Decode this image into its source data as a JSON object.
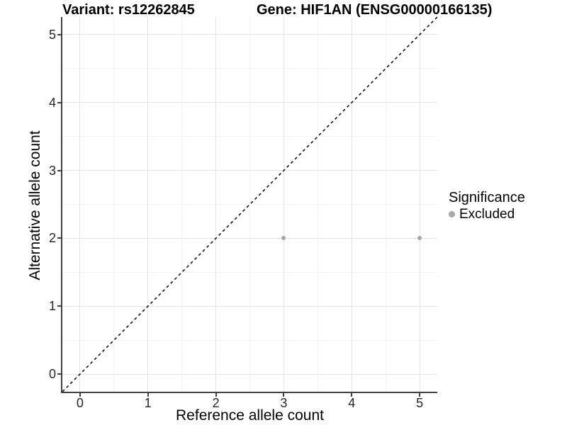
{
  "chart_data": {
    "type": "scatter",
    "title": "Variant: rs12262845",
    "title2": "Gene: HIF1AN (ENSG00000166135)",
    "xlabel": "Reference allele count",
    "ylabel": "Alternative allele count",
    "xlim": [
      -0.26,
      5.26
    ],
    "ylim": [
      -0.26,
      5.26
    ],
    "xticks": [
      0,
      1,
      2,
      3,
      4,
      5
    ],
    "yticks": [
      0,
      1,
      2,
      3,
      4,
      5
    ],
    "minor_ticks": [
      0.5,
      1.5,
      2.5,
      3.5,
      4.5
    ],
    "grid": true,
    "legend_position": "right",
    "series": [
      {
        "name": "Excluded",
        "color": "#a8a8a8",
        "points": [
          {
            "x": 3,
            "y": 2
          },
          {
            "x": 5,
            "y": 2
          }
        ]
      }
    ],
    "reference_line": {
      "type": "identity",
      "style": "dashed",
      "color": "#000000",
      "dash": "4 4"
    }
  },
  "legend": {
    "title": "Significance",
    "items": [
      {
        "label": "Excluded",
        "color": "#a8a8a8"
      }
    ]
  },
  "colors": {
    "grid_major": "#e4e4e4",
    "grid_minor": "#f2f2f2",
    "axis_line": "#404040",
    "tick_text": "#262626",
    "point": "#a8a8a8",
    "dashed_line": "#000000"
  }
}
